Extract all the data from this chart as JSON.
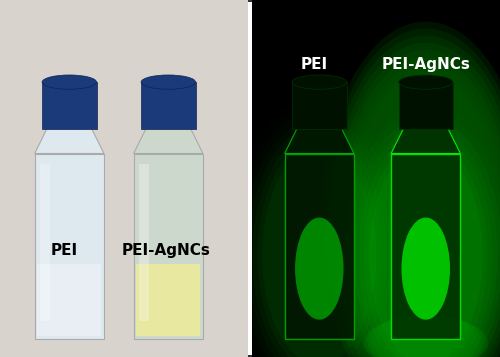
{
  "figsize": [
    5.0,
    3.57
  ],
  "dpi": 100,
  "left_panel": {
    "bg_color": "#d8d3cc",
    "bottle1_body_color": "#e8eef2",
    "bottle1_cap_color": "#1a3a7a",
    "bottle1_liquid_color": "#f0f0f0",
    "bottle2_body_color": "#dde8dd",
    "bottle2_cap_color": "#1a3a7a",
    "bottle2_liquid_color": "#e8e8a0",
    "label1": "PEI",
    "label2": "PEI-AgNCs",
    "label_color": "#000000",
    "label_fontsize": 11
  },
  "right_panel": {
    "bg_color": "#000000",
    "bottle1_glow_color": "#003300",
    "bottle2_glow_color": "#00cc00",
    "bottle1_body_color": "#001500",
    "bottle2_body_color": "#006600",
    "label1": "PEI",
    "label2": "PEI-AgNCs",
    "label_color": "#ffffff",
    "label_fontsize": 11
  },
  "border_color": "#333333",
  "border_width": 1.5
}
